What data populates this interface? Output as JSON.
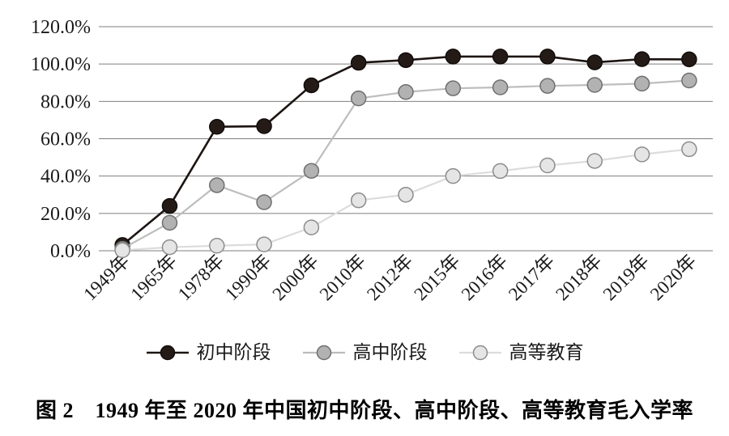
{
  "figure": {
    "caption": "图 2　1949 年至 2020 年中国初中阶段、高中阶段、高等教育毛入学率"
  },
  "chart_data": {
    "type": "line",
    "title": "1949年至2020年中国初中阶段、高中阶段、高等教育毛入学率",
    "categories": [
      "1949年",
      "1965年",
      "1978年",
      "1990年",
      "2000年",
      "2010年",
      "2012年",
      "2015年",
      "2016年",
      "2017年",
      "2018年",
      "2019年",
      "2020年"
    ],
    "series": [
      {
        "name": "初中阶段",
        "values": [
          3.1,
          24.0,
          66.4,
          66.7,
          88.6,
          100.7,
          102.1,
          104.0,
          104.0,
          104.0,
          100.9,
          102.6,
          102.5
        ],
        "line_color": "#1d1512",
        "marker_fill": "#241b17",
        "marker_stroke": "#120c0a"
      },
      {
        "name": "高中阶段",
        "values": [
          1.1,
          15.0,
          35.1,
          26.0,
          42.8,
          81.6,
          85.0,
          87.0,
          87.5,
          88.3,
          88.8,
          89.5,
          91.2
        ],
        "line_color": "#bdbdbd",
        "marker_fill": "#b2b2b2",
        "marker_stroke": "#6f6f6f"
      },
      {
        "name": "高等教育",
        "values": [
          0.26,
          1.9,
          2.7,
          3.4,
          12.5,
          27.0,
          30.0,
          40.0,
          42.7,
          45.7,
          48.1,
          51.6,
          54.4
        ],
        "line_color": "#dcdcdc",
        "marker_fill": "#e5e5e5",
        "marker_stroke": "#8c8c8c"
      }
    ],
    "yticks": [
      0,
      20,
      40,
      60,
      80,
      100,
      120
    ],
    "ytick_labels": [
      "0.0%",
      "20.0%",
      "40.0%",
      "60.0%",
      "80.0%",
      "100.0%",
      "120.0%"
    ],
    "ylim": [
      0,
      120
    ],
    "xlabel": "",
    "ylabel": "",
    "grid": "horizontal",
    "gridline_color": "#7f7f7f",
    "legend_position": "bottom",
    "background": "#ffffff"
  }
}
